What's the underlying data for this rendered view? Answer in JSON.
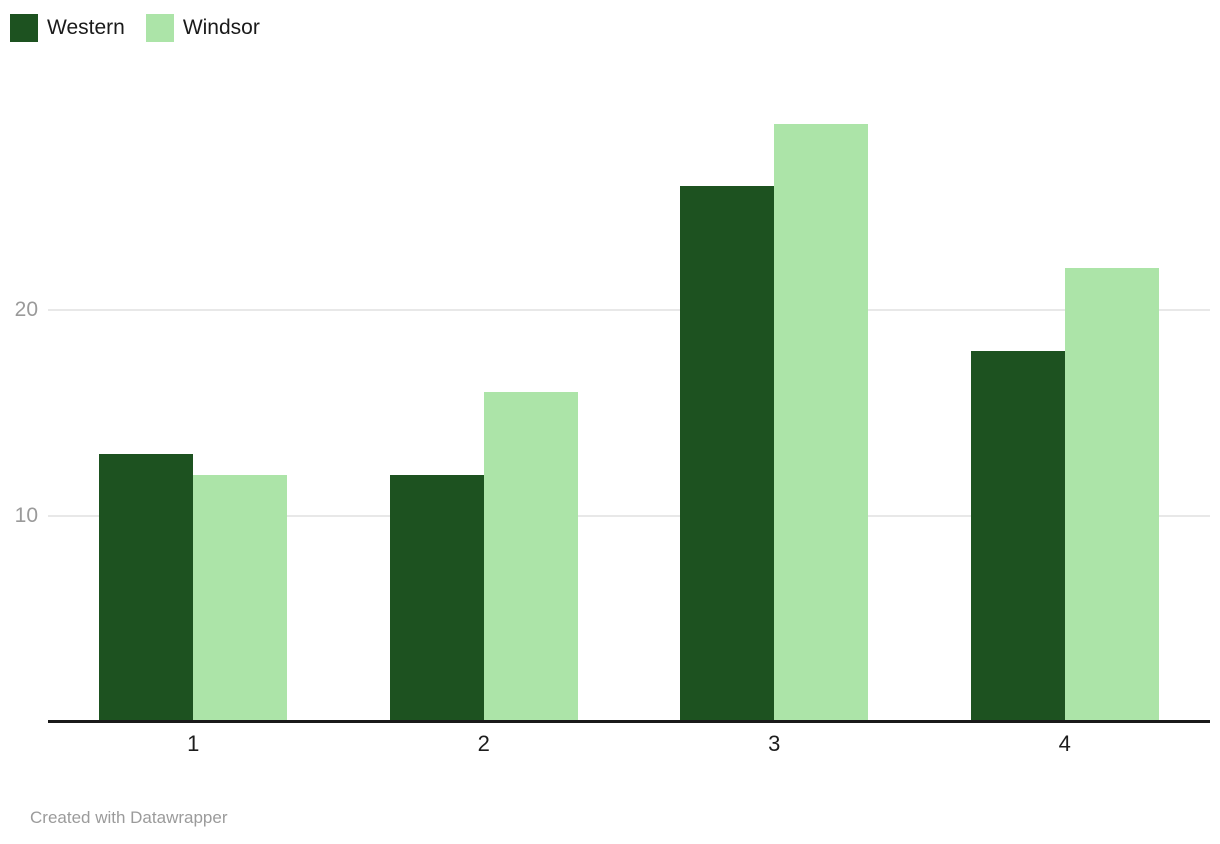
{
  "chart_data": {
    "type": "bar",
    "title": "",
    "xlabel": "",
    "ylabel": "",
    "categories": [
      "1",
      "2",
      "3",
      "4"
    ],
    "series": [
      {
        "name": "Western",
        "color": "#1d5220",
        "values": [
          13,
          12,
          26,
          18
        ]
      },
      {
        "name": "Windsor",
        "color": "#ace4a8",
        "values": [
          12,
          16,
          29,
          22
        ]
      }
    ],
    "ylim": [
      0,
      32
    ],
    "y_ticks": [
      10,
      20
    ],
    "grid": "horizontal",
    "legend_position": "top-left"
  },
  "footer": {
    "credit": "Created with Datawrapper"
  },
  "colors": {
    "background": "#ffffff",
    "gridline": "#e8e8e8",
    "axis_line": "#191919",
    "y_tick_label": "#9a9a9a",
    "x_tick_label": "#1d1d1d",
    "legend_text": "#1a1a1a",
    "footer_text": "#9b9b9b"
  }
}
